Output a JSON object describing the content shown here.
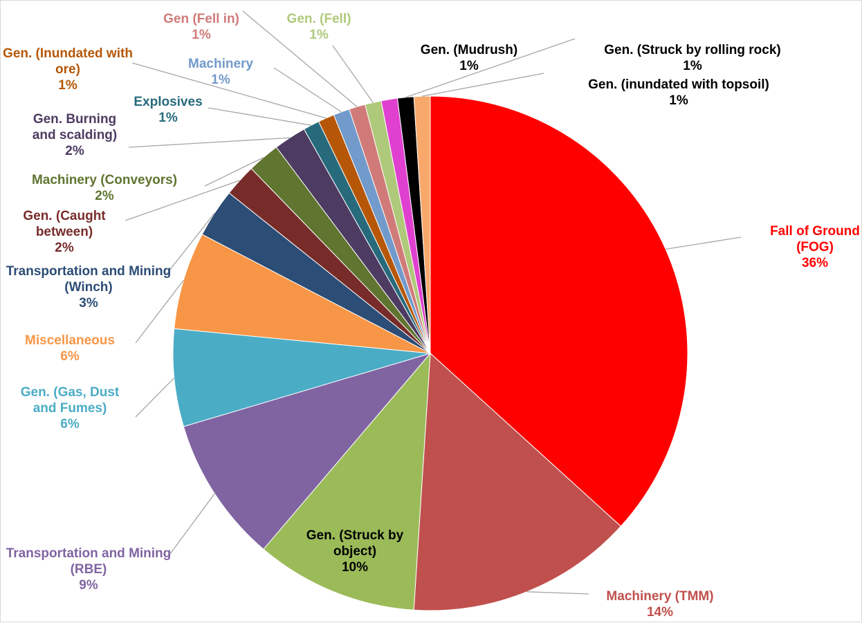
{
  "chart_data": {
    "type": "pie",
    "categories": [
      "Fall of Ground (FOG)",
      "Machinery (TMM)",
      "Gen. (Struck by object)",
      "Transportation and Mining (RBE)",
      "Gen. (Gas, Dust and Fumes)",
      "Miscellaneous",
      "Transportation and Mining (Winch)",
      "Gen. (Caught between)",
      "Machinery (Conveyors)",
      "Gen. Burning and scalding)",
      "Explosives",
      "Gen. (Inundated with ore)",
      "Machinery",
      "Gen (Fell in)",
      "Gen. (Fell)",
      "Gen. (Mudrush)",
      "Gen. (Struck by rolling rock)",
      "Gen. (inundated with topsoil)"
    ],
    "values": [
      36,
      14,
      10,
      9,
      6,
      6,
      3,
      2,
      2,
      2,
      1,
      1,
      1,
      1,
      1,
      1,
      1,
      1
    ],
    "value_labels": [
      "36%",
      "14%",
      "10%",
      "9%",
      "6%",
      "6%",
      "3%",
      "2%",
      "2%",
      "2%",
      "1%",
      "1%",
      "1%",
      "1%",
      "1%",
      "1%",
      "1%",
      "1%"
    ],
    "colors": [
      "#ff0000",
      "#c0504d",
      "#9bbb59",
      "#8064a2",
      "#4bacc6",
      "#f79646",
      "#2c4d75",
      "#772c2a",
      "#5f7530",
      "#4d3b62",
      "#276a7c",
      "#b65708",
      "#729aca",
      "#d07b79",
      "#afc97a",
      "#e040d0",
      "#000000",
      "#f9a86c"
    ]
  }
}
